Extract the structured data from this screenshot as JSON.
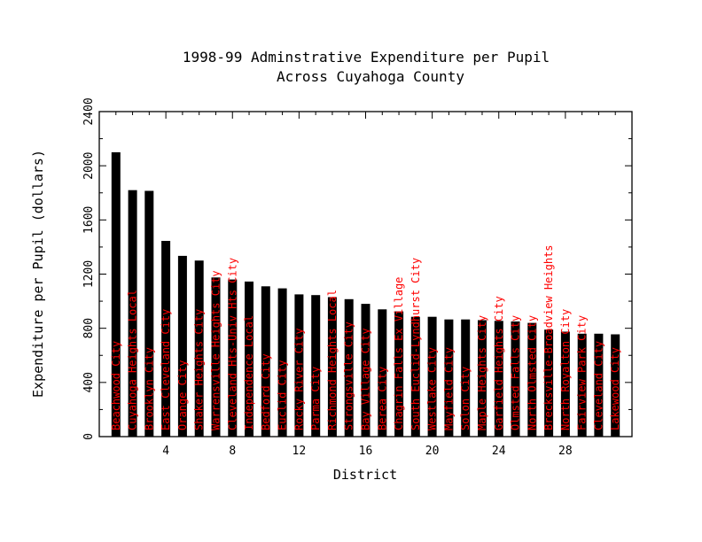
{
  "chart_data": {
    "type": "bar",
    "title": [
      "1998-99 Adminstrative Expenditure per Pupil",
      "Across Cuyahoga County"
    ],
    "xlabel": "District",
    "ylabel": "Expenditure per Pupil (dollars)",
    "xlim": [
      0,
      32
    ],
    "ylim": [
      0,
      2400
    ],
    "xticks": [
      4,
      8,
      12,
      16,
      20,
      24,
      28
    ],
    "yticks": [
      0,
      400,
      800,
      1200,
      1600,
      2000,
      2400
    ],
    "grid": false,
    "colors": {
      "bar": "#000000",
      "label": "#ff0000"
    },
    "categories": [
      "Beachwood City",
      "Cuyahoga Heights Local",
      "Brooklyn City",
      "East Cleveland City",
      "Orange City",
      "Shaker Heights City",
      "Warrensville Heights City",
      "Cleveland Hts-Univ Hts City",
      "Independence Local",
      "Bedford City",
      "Euclid City",
      "Rocky River City",
      "Parma City",
      "Richmond Heights Local",
      "Strongsville City",
      "Bay Village City",
      "Berea City",
      "Chagrin Falls Ex Village",
      "South Euclid-Lyndhurst City",
      "Westlake City",
      "Mayfield City",
      "Solon City",
      "Maple Heights City",
      "Garfield Heights City",
      "Olmsted Falls City",
      "North Olmsted City",
      "Brecksville-Broadview Heights",
      "North Royalton City",
      "Fairview Park City",
      "Cleveland City",
      "Lakewood City"
    ],
    "x": [
      1,
      2,
      3,
      4,
      5,
      6,
      7,
      8,
      9,
      10,
      11,
      12,
      13,
      14,
      15,
      16,
      17,
      18,
      19,
      20,
      21,
      22,
      23,
      24,
      25,
      26,
      27,
      28,
      29,
      30,
      31
    ],
    "values": [
      2100,
      1820,
      1815,
      1445,
      1335,
      1300,
      1175,
      1160,
      1145,
      1110,
      1095,
      1050,
      1045,
      1030,
      1015,
      980,
      940,
      925,
      885,
      885,
      865,
      865,
      860,
      855,
      850,
      840,
      790,
      775,
      760,
      760,
      755
    ]
  }
}
